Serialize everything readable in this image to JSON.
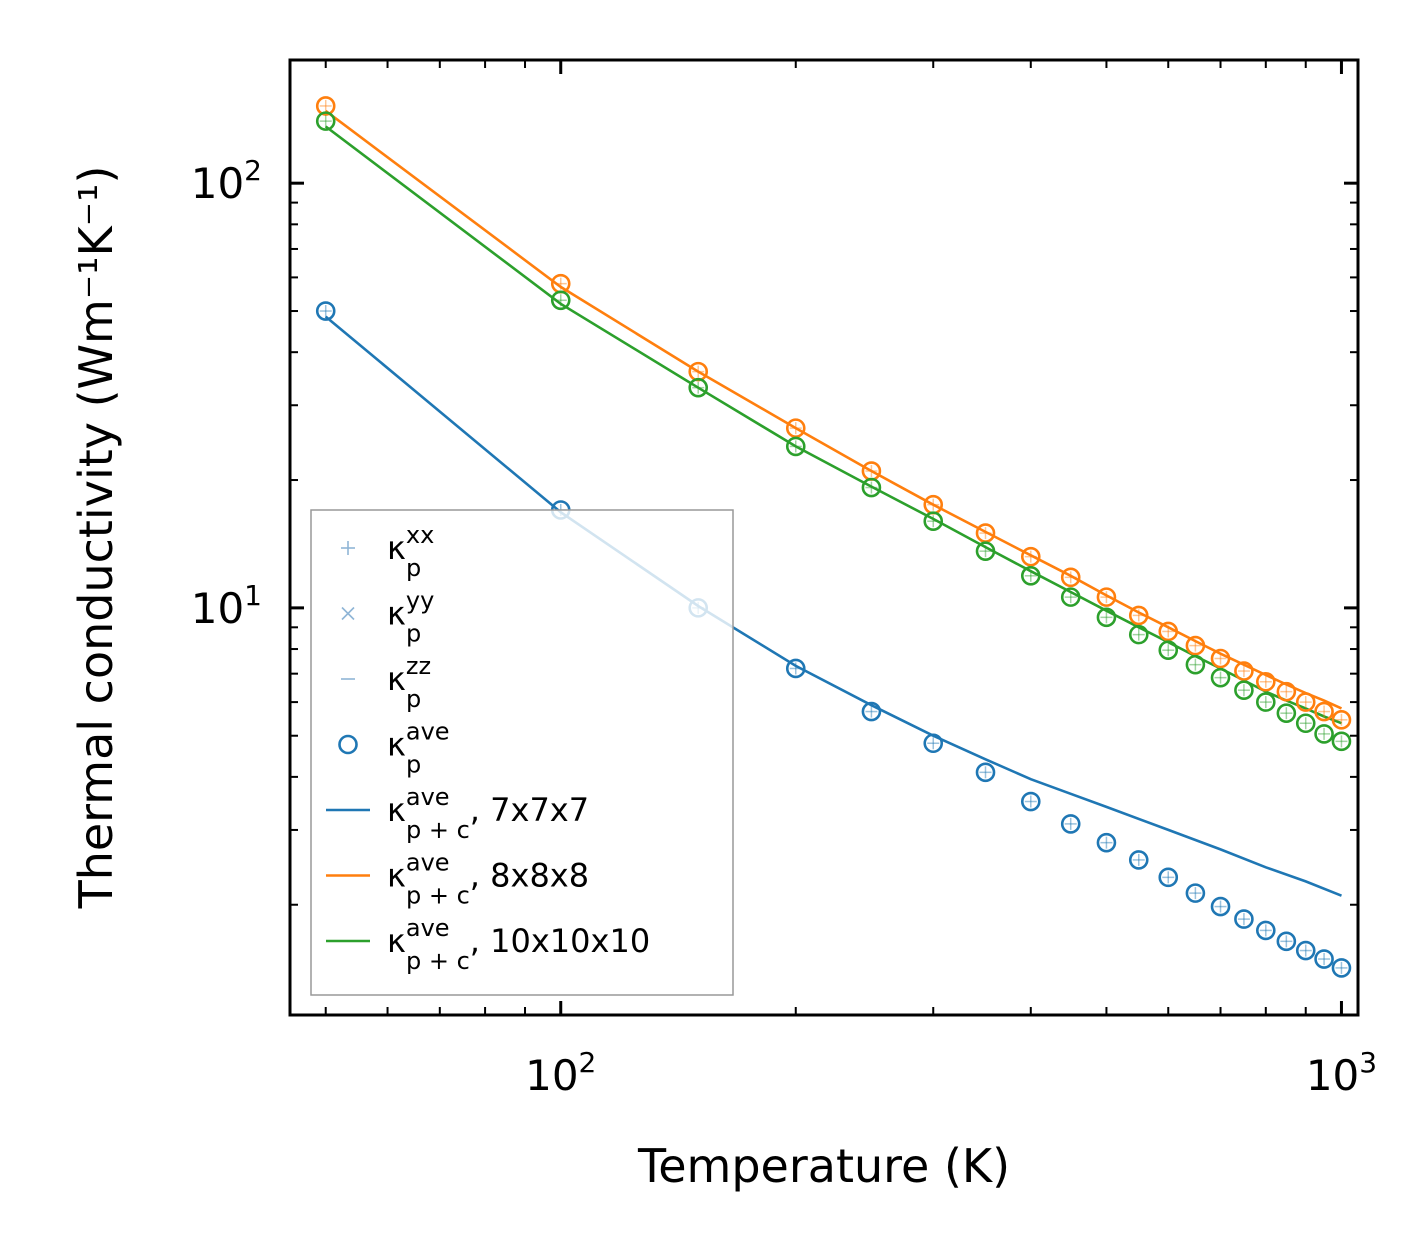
{
  "chart_data": {
    "type": "line",
    "xlabel": "Temperature (K)",
    "ylabel": "Thermal conductivity (Wm⁻¹K⁻¹)",
    "xscale": "log",
    "yscale": "log",
    "xlim": [
      45,
      1050
    ],
    "ylim": [
      1.1,
      195
    ],
    "x_ticks": [
      {
        "value": 100,
        "base": "10",
        "exp": "2"
      },
      {
        "value": 1000,
        "base": "10",
        "exp": "3"
      }
    ],
    "y_ticks": [
      {
        "value": 10,
        "base": "10",
        "exp": "1"
      },
      {
        "value": 100,
        "base": "10",
        "exp": "2"
      }
    ],
    "legend_position": "lower-left",
    "legend": [
      {
        "symbol": "plus",
        "label": "κ",
        "sub": "p",
        "sup": "xx",
        "suffix": ""
      },
      {
        "symbol": "x",
        "label": "κ",
        "sub": "p",
        "sup": "yy",
        "suffix": ""
      },
      {
        "symbol": "dash",
        "label": "κ",
        "sub": "p",
        "sup": "zz",
        "suffix": ""
      },
      {
        "symbol": "circle",
        "label": "κ",
        "sub": "p",
        "sup": "ave",
        "suffix": ""
      },
      {
        "symbol": "line",
        "color": "#1f77b4",
        "label": "κ",
        "sub": "p + c",
        "sup": "ave",
        "suffix": ", 7x7x7"
      },
      {
        "symbol": "line",
        "color": "#ff7f0e",
        "label": "κ",
        "sub": "p + c",
        "sup": "ave",
        "suffix": ", 8x8x8"
      },
      {
        "symbol": "line",
        "color": "#2ca02c",
        "label": "κ",
        "sub": "p + c",
        "sup": "ave",
        "suffix": ", 10x10x10"
      }
    ],
    "series": [
      {
        "name": "7x7x7",
        "color": "#1f77b4",
        "points_x": [
          50,
          100,
          150,
          200,
          250,
          300,
          350,
          400,
          450,
          500,
          550,
          600,
          650,
          700,
          750,
          800,
          850,
          900,
          950,
          1000
        ],
        "points_y": [
          50,
          17,
          10,
          7.2,
          5.7,
          4.8,
          4.1,
          3.5,
          3.1,
          2.8,
          2.55,
          2.32,
          2.13,
          1.98,
          1.85,
          1.74,
          1.64,
          1.56,
          1.49,
          1.42
        ],
        "line_x": [
          50,
          100,
          150,
          200,
          250,
          300,
          350,
          400,
          450,
          500,
          600,
          700,
          800,
          900,
          1000
        ],
        "line_y": [
          48.5,
          16.8,
          10.1,
          7.3,
          5.9,
          5.0,
          4.4,
          3.95,
          3.65,
          3.4,
          3.0,
          2.7,
          2.45,
          2.27,
          2.1
        ]
      },
      {
        "name": "8x8x8",
        "color": "#ff7f0e",
        "points_x": [
          50,
          100,
          150,
          200,
          250,
          300,
          350,
          400,
          450,
          500,
          550,
          600,
          650,
          700,
          750,
          800,
          850,
          900,
          950,
          1000
        ],
        "points_y": [
          152,
          58,
          36,
          26.5,
          21,
          17.5,
          15,
          13.2,
          11.8,
          10.6,
          9.6,
          8.8,
          8.15,
          7.6,
          7.1,
          6.7,
          6.35,
          6.0,
          5.7,
          5.45
        ],
        "line_x": [
          50,
          100,
          150,
          200,
          250,
          300,
          350,
          400,
          450,
          500,
          550,
          600,
          650,
          700,
          750,
          800,
          850,
          900,
          950,
          1000
        ],
        "line_y": [
          148,
          57,
          36,
          26.5,
          21,
          17.5,
          15.1,
          13.3,
          11.9,
          10.7,
          9.75,
          9.0,
          8.35,
          7.8,
          7.35,
          6.95,
          6.6,
          6.3,
          6.05,
          5.8
        ]
      },
      {
        "name": "10x10x10",
        "color": "#2ca02c",
        "points_x": [
          50,
          100,
          150,
          200,
          250,
          300,
          350,
          400,
          450,
          500,
          550,
          600,
          650,
          700,
          750,
          800,
          850,
          900,
          950,
          1000
        ],
        "points_y": [
          140,
          53,
          33,
          24,
          19.2,
          16,
          13.6,
          11.9,
          10.6,
          9.5,
          8.65,
          7.95,
          7.35,
          6.85,
          6.4,
          6.0,
          5.65,
          5.35,
          5.05,
          4.85
        ],
        "line_x": [
          50,
          100,
          150,
          200,
          250,
          300,
          350,
          400,
          450,
          500,
          550,
          600,
          650,
          700,
          750,
          800,
          850,
          900,
          950,
          1000
        ],
        "line_y": [
          136,
          52,
          33,
          24,
          19.3,
          16.2,
          13.9,
          12.2,
          10.9,
          9.85,
          9.0,
          8.3,
          7.7,
          7.2,
          6.75,
          6.35,
          6.05,
          5.8,
          5.55,
          5.35
        ]
      }
    ]
  }
}
